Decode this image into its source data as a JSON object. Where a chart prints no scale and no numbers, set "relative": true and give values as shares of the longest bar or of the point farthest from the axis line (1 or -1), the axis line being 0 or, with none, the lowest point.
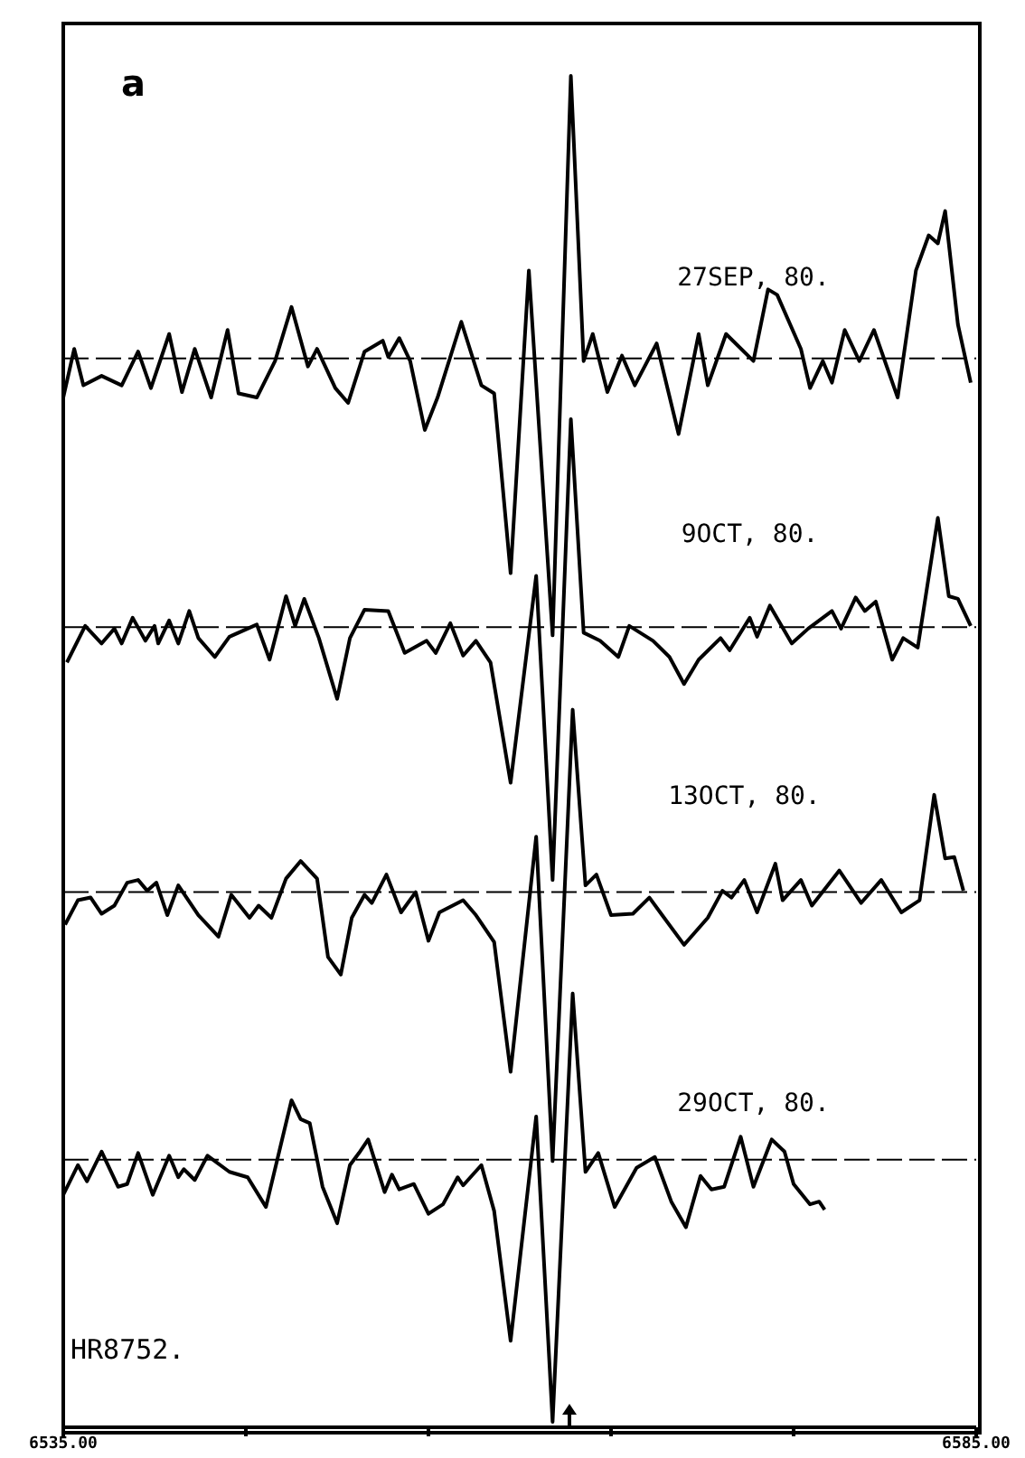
{
  "chart_data": {
    "type": "line",
    "relative": true,
    "xlim": [
      6535,
      6585
    ],
    "xticks": [
      {
        "value": 6535,
        "label": "6535.00"
      },
      {
        "value": 6545,
        "label": null
      },
      {
        "value": 6555,
        "label": null
      },
      {
        "value": 6565,
        "label": null
      },
      {
        "value": 6575,
        "label": null
      },
      {
        "value": 6585,
        "label": "6585.00"
      }
    ],
    "grid": false,
    "legend": false,
    "marker": "none",
    "line_style": "solid",
    "annotations": [
      "a",
      "HR8752."
    ],
    "ref_lines": [
      {
        "axis": "y",
        "value": 0.791,
        "line_style": "dashed",
        "color": "#000000"
      },
      {
        "axis": "y",
        "value": 0.592,
        "line_style": "dashed",
        "color": "#000000"
      },
      {
        "axis": "y",
        "value": 0.396,
        "line_style": "dashed",
        "color": "#000000"
      },
      {
        "axis": "y",
        "value": 0.198,
        "line_style": "dashed",
        "color": "#000000"
      }
    ],
    "series": [
      {
        "name": "27SEP, 80.",
        "color": "#000000",
        "x": [
          6535.0,
          6535.6,
          6536.1,
          6537.1,
          6538.2,
          6539.1,
          6539.8,
          6540.8,
          6541.5,
          6542.2,
          6543.1,
          6544.0,
          6544.6,
          6545.6,
          6546.6,
          6547.5,
          6548.4,
          6548.9,
          6549.9,
          6550.6,
          6551.5,
          6552.5,
          6552.8,
          6553.4,
          6554.0,
          6554.8,
          6555.5,
          6556.8,
          6557.9,
          6558.6,
          6559.5,
          6560.5,
          6561.8,
          6562.8,
          6563.5,
          6564.0,
          6564.8,
          6565.6,
          6566.3,
          6567.5,
          6568.7,
          6569.8,
          6570.3,
          6571.3,
          6572.8,
          6573.6,
          6574.1,
          6575.4,
          6575.9,
          6576.6,
          6577.1,
          6577.8,
          6578.6,
          6579.4,
          6580.7,
          6581.7,
          6582.4,
          6582.9,
          6583.3,
          6584.0,
          6584.7
        ],
        "values": [
          0.762,
          0.798,
          0.771,
          0.778,
          0.771,
          0.796,
          0.769,
          0.809,
          0.766,
          0.798,
          0.762,
          0.812,
          0.765,
          0.762,
          0.789,
          0.829,
          0.785,
          0.798,
          0.769,
          0.758,
          0.796,
          0.804,
          0.792,
          0.806,
          0.789,
          0.738,
          0.762,
          0.818,
          0.771,
          0.765,
          0.632,
          0.856,
          0.586,
          1.0,
          0.789,
          0.809,
          0.766,
          0.793,
          0.771,
          0.802,
          0.735,
          0.809,
          0.771,
          0.809,
          0.789,
          0.842,
          0.838,
          0.798,
          0.769,
          0.789,
          0.773,
          0.812,
          0.789,
          0.812,
          0.762,
          0.856,
          0.882,
          0.876,
          0.9,
          0.816,
          0.773
        ]
      },
      {
        "name": "9OCT, 80.",
        "color": "#000000",
        "x": [
          6535.2,
          6536.2,
          6537.1,
          6537.8,
          6538.2,
          6538.8,
          6539.5,
          6540.0,
          6540.2,
          6540.8,
          6541.3,
          6541.9,
          6542.4,
          6543.3,
          6544.1,
          6545.6,
          6546.3,
          6547.2,
          6547.7,
          6548.2,
          6549.0,
          6550.0,
          6550.7,
          6551.5,
          6552.8,
          6553.7,
          6554.9,
          6555.4,
          6556.2,
          6556.9,
          6557.6,
          6558.4,
          6559.5,
          6560.9,
          6561.8,
          6562.8,
          6563.5,
          6564.4,
          6565.4,
          6566.0,
          6567.3,
          6568.2,
          6569.0,
          6569.8,
          6571.0,
          6571.5,
          6572.6,
          6573.0,
          6573.7,
          6574.9,
          6575.8,
          6577.1,
          6577.6,
          6578.4,
          6578.9,
          6579.5,
          6580.4,
          6581.0,
          6581.8,
          6582.9,
          6583.5,
          6584.0,
          6584.7
        ],
        "values": [
          0.566,
          0.593,
          0.58,
          0.591,
          0.58,
          0.599,
          0.582,
          0.593,
          0.58,
          0.597,
          0.58,
          0.604,
          0.584,
          0.57,
          0.585,
          0.594,
          0.568,
          0.615,
          0.593,
          0.613,
          0.584,
          0.539,
          0.584,
          0.605,
          0.604,
          0.573,
          0.582,
          0.573,
          0.595,
          0.571,
          0.582,
          0.566,
          0.477,
          0.63,
          0.405,
          0.746,
          0.588,
          0.582,
          0.57,
          0.593,
          0.582,
          0.57,
          0.55,
          0.568,
          0.584,
          0.575,
          0.599,
          0.585,
          0.608,
          0.58,
          0.591,
          0.604,
          0.591,
          0.614,
          0.604,
          0.611,
          0.568,
          0.584,
          0.577,
          0.673,
          0.615,
          0.613,
          0.593
        ]
      },
      {
        "name": "13OCT, 80.",
        "color": "#000000",
        "x": [
          6535.1,
          6535.8,
          6536.5,
          6537.1,
          6537.8,
          6538.5,
          6539.1,
          6539.6,
          6540.1,
          6540.7,
          6541.3,
          6542.4,
          6543.5,
          6544.2,
          6545.2,
          6545.7,
          6546.4,
          6547.2,
          6548.0,
          6548.9,
          6549.5,
          6550.2,
          6550.8,
          6551.5,
          6551.9,
          6552.7,
          6553.5,
          6554.3,
          6555.0,
          6555.6,
          6556.9,
          6557.6,
          6558.6,
          6559.5,
          6560.9,
          6561.8,
          6562.9,
          6563.6,
          6564.2,
          6565.0,
          6566.2,
          6567.1,
          6567.8,
          6569.0,
          6570.3,
          6571.1,
          6571.6,
          6572.3,
          6573.0,
          6574.0,
          6574.4,
          6575.4,
          6576.0,
          6577.5,
          6578.7,
          6579.8,
          6580.9,
          6581.9,
          6582.7,
          6583.3,
          6583.8,
          6584.3
        ],
        "values": [
          0.372,
          0.39,
          0.392,
          0.38,
          0.386,
          0.403,
          0.405,
          0.397,
          0.403,
          0.379,
          0.401,
          0.379,
          0.363,
          0.394,
          0.377,
          0.386,
          0.377,
          0.406,
          0.419,
          0.406,
          0.348,
          0.335,
          0.377,
          0.394,
          0.388,
          0.409,
          0.381,
          0.396,
          0.36,
          0.381,
          0.39,
          0.379,
          0.359,
          0.263,
          0.437,
          0.197,
          0.531,
          0.401,
          0.409,
          0.379,
          0.38,
          0.392,
          0.379,
          0.357,
          0.377,
          0.397,
          0.392,
          0.405,
          0.381,
          0.417,
          0.39,
          0.405,
          0.386,
          0.412,
          0.388,
          0.405,
          0.381,
          0.39,
          0.468,
          0.421,
          0.422,
          0.397
        ]
      },
      {
        "name": "29OCT, 80.",
        "color": "#000000",
        "x": [
          6535.0,
          6535.8,
          6536.3,
          6537.1,
          6538.0,
          6538.5,
          6539.1,
          6539.9,
          6540.8,
          6541.3,
          6541.6,
          6542.2,
          6542.9,
          6544.1,
          6545.1,
          6546.1,
          6547.5,
          6548.0,
          6548.5,
          6549.2,
          6550.0,
          6550.7,
          6551.2,
          6551.7,
          6552.6,
          6553.0,
          6553.4,
          6554.2,
          6555.0,
          6555.8,
          6556.6,
          6556.9,
          6557.9,
          6558.6,
          6559.5,
          6560.9,
          6561.8,
          6562.9,
          6563.6,
          6564.3,
          6565.2,
          6566.4,
          6567.4,
          6568.3,
          6569.1,
          6569.9,
          6570.5,
          6571.2,
          6572.1,
          6572.8,
          6573.8,
          6574.5,
          6575.0,
          6575.9,
          6576.4,
          6576.7
        ],
        "values": [
          0.172,
          0.194,
          0.182,
          0.204,
          0.178,
          0.18,
          0.203,
          0.172,
          0.201,
          0.185,
          0.191,
          0.183,
          0.201,
          0.189,
          0.185,
          0.163,
          0.242,
          0.228,
          0.225,
          0.178,
          0.151,
          0.194,
          0.203,
          0.213,
          0.174,
          0.187,
          0.176,
          0.18,
          0.158,
          0.165,
          0.185,
          0.179,
          0.194,
          0.16,
          0.064,
          0.23,
          0.004,
          0.321,
          0.189,
          0.203,
          0.163,
          0.192,
          0.2,
          0.167,
          0.148,
          0.186,
          0.176,
          0.178,
          0.215,
          0.178,
          0.213,
          0.204,
          0.18,
          0.165,
          0.167,
          0.161
        ]
      }
    ]
  }
}
